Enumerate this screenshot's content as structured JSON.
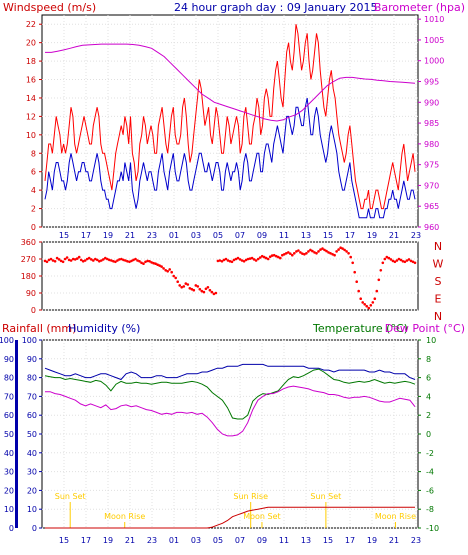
{
  "chart_data": [
    {
      "type": "line",
      "title": "24 hour graph day : 09 January 2015",
      "left_axis_label": "Windspeed (m/s)",
      "right_axis_label": "Barometer (hpa)",
      "x_tick_labels": [
        "15",
        "17",
        "19",
        "21",
        "23",
        "01",
        "03",
        "05",
        "07",
        "09",
        "11",
        "13",
        "15",
        "17",
        "19",
        "21",
        "23"
      ],
      "left_ticks": [
        "0",
        "2",
        "4",
        "6",
        "8",
        "10",
        "12",
        "14",
        "16",
        "18",
        "20",
        "22"
      ],
      "right_ticks": [
        "960",
        "965",
        "970",
        "975",
        "980",
        "985",
        "990",
        "995",
        "1000",
        "1005",
        "1010"
      ],
      "ylim_left": [
        0,
        23
      ],
      "ylim_right": [
        960,
        1011
      ],
      "series": [
        {
          "key": "gust",
          "color": "#ff0000",
          "values": [
            5,
            7,
            9,
            9,
            8,
            10,
            12,
            11,
            10,
            8,
            9,
            8,
            9,
            11,
            13,
            12,
            9,
            8,
            9,
            10,
            11,
            12,
            11,
            10,
            9,
            9,
            11,
            12,
            13,
            12,
            9,
            8,
            8,
            7,
            6,
            5,
            4,
            6,
            8,
            9,
            10,
            11,
            10,
            12,
            11,
            9,
            12,
            8,
            7,
            5,
            6,
            9,
            10,
            12,
            11,
            9,
            10,
            11,
            10,
            8,
            8,
            11,
            12,
            13,
            11,
            9,
            8,
            10,
            12,
            13,
            10,
            9,
            9,
            10,
            13,
            14,
            12,
            9,
            7,
            8,
            10,
            12,
            14,
            16,
            15,
            13,
            11,
            12,
            13,
            10,
            9,
            11,
            13,
            12,
            10,
            8,
            8,
            10,
            12,
            11,
            9,
            10,
            11,
            12,
            11,
            8,
            9,
            12,
            13,
            11,
            9,
            9,
            11,
            12,
            14,
            13,
            10,
            11,
            14,
            15,
            14,
            12,
            12,
            15,
            17,
            18,
            16,
            14,
            13,
            16,
            19,
            20,
            18,
            17,
            19,
            22,
            21,
            19,
            17,
            18,
            20,
            21,
            18,
            16,
            17,
            19,
            21,
            20,
            17,
            15,
            13,
            12,
            14,
            16,
            17,
            15,
            14,
            12,
            10,
            9,
            8,
            7,
            8,
            10,
            11,
            9,
            7,
            5,
            4,
            3,
            2,
            2,
            3,
            3,
            4,
            2,
            2,
            3,
            4,
            4,
            3,
            2,
            2,
            3,
            4,
            5,
            6,
            7,
            6,
            5,
            4,
            6,
            8,
            9,
            7,
            5,
            6,
            7,
            8,
            6
          ]
        },
        {
          "key": "average",
          "color": "#0000cc",
          "values": [
            3,
            4,
            6,
            5,
            4,
            6,
            7,
            7,
            6,
            5,
            5,
            4,
            5,
            7,
            8,
            7,
            6,
            5,
            6,
            6,
            7,
            7,
            6,
            6,
            5,
            5,
            6,
            7,
            8,
            7,
            5,
            4,
            4,
            3,
            3,
            2,
            2,
            3,
            4,
            5,
            5,
            6,
            5,
            7,
            6,
            5,
            7,
            4,
            3,
            2,
            3,
            5,
            6,
            7,
            6,
            5,
            6,
            6,
            5,
            4,
            4,
            6,
            7,
            8,
            6,
            5,
            4,
            6,
            7,
            8,
            6,
            5,
            5,
            6,
            7,
            8,
            7,
            5,
            4,
            4,
            5,
            6,
            7,
            8,
            8,
            7,
            6,
            6,
            7,
            6,
            5,
            6,
            7,
            7,
            6,
            4,
            4,
            6,
            7,
            6,
            5,
            6,
            6,
            7,
            6,
            4,
            5,
            7,
            8,
            7,
            5,
            5,
            6,
            7,
            8,
            8,
            6,
            6,
            8,
            9,
            9,
            8,
            7,
            9,
            10,
            11,
            10,
            9,
            8,
            10,
            12,
            12,
            11,
            10,
            11,
            13,
            13,
            12,
            11,
            11,
            13,
            14,
            12,
            10,
            10,
            12,
            13,
            12,
            10,
            9,
            8,
            7,
            8,
            10,
            11,
            10,
            9,
            8,
            6,
            5,
            4,
            4,
            5,
            6,
            7,
            5,
            4,
            3,
            2,
            1,
            1,
            1,
            1,
            1,
            2,
            1,
            1,
            1,
            2,
            2,
            1,
            1,
            1,
            2,
            2,
            3,
            3,
            4,
            3,
            3,
            2,
            3,
            4,
            5,
            4,
            3,
            3,
            4,
            4,
            3
          ]
        },
        {
          "key": "barometer",
          "color": "#cc00cc",
          "axis": "right",
          "values": [
            1002,
            1002,
            1002.3,
            1002.6,
            1003,
            1003.4,
            1003.7,
            1003.8,
            1003.9,
            1004,
            1004,
            1004,
            1004,
            1004,
            1003.9,
            1003.7,
            1003.4,
            1003,
            1002,
            1001,
            999.5,
            998,
            996.5,
            995,
            993.5,
            992,
            991,
            990,
            989.5,
            989,
            988.5,
            988,
            987.5,
            987,
            986.5,
            986,
            985.7,
            985.5,
            985.8,
            986.5,
            987,
            988,
            989.5,
            991,
            992.5,
            994,
            995,
            995.8,
            996,
            996,
            995.8,
            995.6,
            995.5,
            995.3,
            995.2,
            995,
            994.9,
            994.8,
            994.7,
            994.6
          ]
        }
      ]
    },
    {
      "type": "scatter",
      "series_name": "Wind direction",
      "left_ticks": [
        "0",
        "90",
        "180",
        "270",
        "360"
      ],
      "compass_labels": [
        "N",
        "W",
        "S",
        "E",
        "N"
      ],
      "ylim": [
        0,
        360
      ],
      "color": "#ff0000",
      "values": [
        260,
        255,
        265,
        270,
        262,
        258,
        275,
        268,
        260,
        255,
        270,
        278,
        265,
        262,
        270,
        268,
        272,
        280,
        265,
        258,
        262,
        270,
        275,
        268,
        262,
        270,
        265,
        258,
        262,
        268,
        275,
        270,
        265,
        262,
        258,
        255,
        262,
        268,
        270,
        265,
        262,
        258,
        255,
        260,
        265,
        270,
        262,
        258,
        250,
        245,
        255,
        260,
        258,
        252,
        248,
        245,
        240,
        235,
        230,
        220,
        210,
        205,
        215,
        200,
        180,
        170,
        150,
        130,
        120,
        125,
        140,
        135,
        115,
        110,
        105,
        130,
        125,
        110,
        100,
        95,
        112,
        120,
        105,
        95,
        85,
        90,
        260,
        262,
        258,
        265,
        270,
        262,
        258,
        255,
        265,
        270,
        275,
        268,
        262,
        258,
        265,
        270,
        272,
        275,
        268,
        262,
        270,
        278,
        285,
        280,
        275,
        270,
        282,
        288,
        290,
        285,
        280,
        275,
        290,
        295,
        300,
        305,
        298,
        290,
        300,
        310,
        315,
        305,
        298,
        295,
        300,
        310,
        318,
        312,
        305,
        300,
        310,
        320,
        325,
        318,
        312,
        305,
        300,
        295,
        290,
        310,
        320,
        330,
        325,
        318,
        310,
        300,
        280,
        250,
        200,
        150,
        100,
        60,
        40,
        30,
        20,
        10,
        25,
        40,
        60,
        100,
        160,
        210,
        250,
        270,
        280,
        275,
        268,
        260,
        255,
        262,
        270,
        265,
        258,
        255,
        262,
        268,
        260,
        255,
        250
      ]
    },
    {
      "type": "line",
      "left_axis_label_rainfall": "Rainfall (mm)",
      "left_axis_label_humidity": "Humidity (%)",
      "right_axis_label_temp": "Temperature (°C)",
      "right_axis_label_dew": "Dew Point (°C)",
      "rain_ticks": [
        "0",
        "10",
        "20",
        "30",
        "40",
        "50",
        "60",
        "70",
        "80",
        "90",
        "100"
      ],
      "humidity_ticks": [
        "0",
        "10",
        "20",
        "30",
        "40",
        "50",
        "60",
        "70",
        "80",
        "90",
        "100"
      ],
      "temp_ticks": [
        "-10",
        "-8",
        "-6",
        "-4",
        "-2",
        "0",
        "2",
        "4",
        "6",
        "8",
        "10"
      ],
      "x_tick_labels": [
        "15",
        "17",
        "19",
        "21",
        "23",
        "01",
        "03",
        "05",
        "07",
        "09",
        "11",
        "13",
        "15",
        "17",
        "19",
        "21",
        "23"
      ],
      "ylim_temp": [
        -10,
        10
      ],
      "ylim_humidity": [
        0,
        100
      ],
      "annotations": [
        {
          "text": "Sun Set",
          "x_frac": 0.075,
          "row": "upper"
        },
        {
          "text": "Moon Rise",
          "x_frac": 0.22,
          "row": "lower"
        },
        {
          "text": "Sun Rise",
          "x_frac": 0.555,
          "row": "upper"
        },
        {
          "text": "Moon Set",
          "x_frac": 0.585,
          "row": "lower"
        },
        {
          "text": "Sun Set",
          "x_frac": 0.755,
          "row": "upper"
        },
        {
          "text": "Moon Rise",
          "x_frac": 0.94,
          "row": "lower"
        }
      ],
      "series": [
        {
          "key": "humidity",
          "color": "#0000aa",
          "axis": "humidity",
          "values": [
            85,
            84,
            83,
            82,
            81,
            81,
            82,
            81,
            80,
            80,
            81,
            82,
            82,
            81,
            80,
            79,
            82,
            83,
            82,
            80,
            80,
            80,
            81,
            81,
            80,
            80,
            80,
            81,
            82,
            82,
            82,
            83,
            83,
            84,
            85,
            85,
            86,
            86,
            86,
            87,
            87,
            87,
            87,
            87,
            86,
            86,
            86,
            86,
            86,
            86,
            86,
            86,
            85,
            85,
            85,
            84,
            84,
            83,
            84,
            84,
            84,
            84,
            84,
            84,
            83,
            83,
            84,
            83,
            83,
            82,
            82,
            82,
            80,
            79
          ]
        },
        {
          "key": "temperature",
          "color": "#007700",
          "axis": "temp",
          "values": [
            6.2,
            6.1,
            6.0,
            6.0,
            5.8,
            5.9,
            5.8,
            5.7,
            5.6,
            5.5,
            5.7,
            5.6,
            5.2,
            4.6,
            5.3,
            5.6,
            5.4,
            5.4,
            5.5,
            5.4,
            5.4,
            5.3,
            5.4,
            5.5,
            5.5,
            5.4,
            5.4,
            5.4,
            5.5,
            5.6,
            5.5,
            5.3,
            5.0,
            4.4,
            4.0,
            3.6,
            2.8,
            1.7,
            1.6,
            1.6,
            2.0,
            3.5,
            4.0,
            4.3,
            4.2,
            4.4,
            4.6,
            5.2,
            5.8,
            6.1,
            6.0,
            6.2,
            6.5,
            6.8,
            6.9,
            6.6,
            6.2,
            5.8,
            5.7,
            5.5,
            5.4,
            5.5,
            5.6,
            5.5,
            5.6,
            5.8,
            5.6,
            5.4,
            5.5,
            5.4,
            5.5,
            5.6,
            5.5,
            5.3
          ]
        },
        {
          "key": "dewpoint",
          "color": "#cc00cc",
          "axis": "temp",
          "values": [
            4.5,
            4.5,
            4.3,
            4.2,
            4.0,
            3.8,
            3.6,
            3.2,
            3.0,
            3.2,
            3.0,
            2.8,
            3.1,
            2.6,
            2.7,
            3.0,
            3.1,
            2.9,
            3.0,
            2.8,
            2.6,
            2.5,
            2.3,
            2.1,
            2.2,
            2.1,
            2.3,
            2.3,
            2.2,
            2.3,
            2.1,
            2.2,
            1.8,
            1.2,
            0.5,
            0.0,
            -0.2,
            -0.2,
            -0.1,
            0.3,
            1.2,
            2.6,
            3.6,
            4.0,
            4.3,
            4.3,
            4.5,
            4.8,
            5.0,
            5.1,
            5.0,
            4.9,
            4.8,
            4.6,
            4.5,
            4.4,
            4.2,
            4.2,
            4.1,
            3.9,
            3.8,
            3.9,
            3.9,
            4.0,
            3.9,
            3.7,
            3.5,
            3.4,
            3.4,
            3.6,
            3.8,
            3.7,
            3.6,
            2.9
          ]
        },
        {
          "key": "rainfall",
          "color": "#cc0000",
          "axis": "rain",
          "values": [
            0,
            0,
            0,
            0,
            0,
            0,
            0,
            0,
            0,
            0,
            0,
            0,
            0,
            0,
            0,
            0,
            0,
            0,
            0,
            0,
            0,
            0,
            0,
            0,
            0,
            0,
            0,
            0,
            0,
            0,
            0,
            0,
            0,
            0.5,
            1.5,
            2.5,
            4,
            6,
            7,
            8,
            9,
            9.5,
            10,
            10.5,
            11,
            11,
            11,
            11,
            11,
            11,
            11,
            11,
            11,
            11,
            11,
            11,
            11,
            11,
            11,
            11,
            11,
            11,
            11,
            11,
            11,
            11,
            11,
            11,
            11,
            11,
            11,
            11,
            11,
            11
          ]
        }
      ]
    }
  ]
}
